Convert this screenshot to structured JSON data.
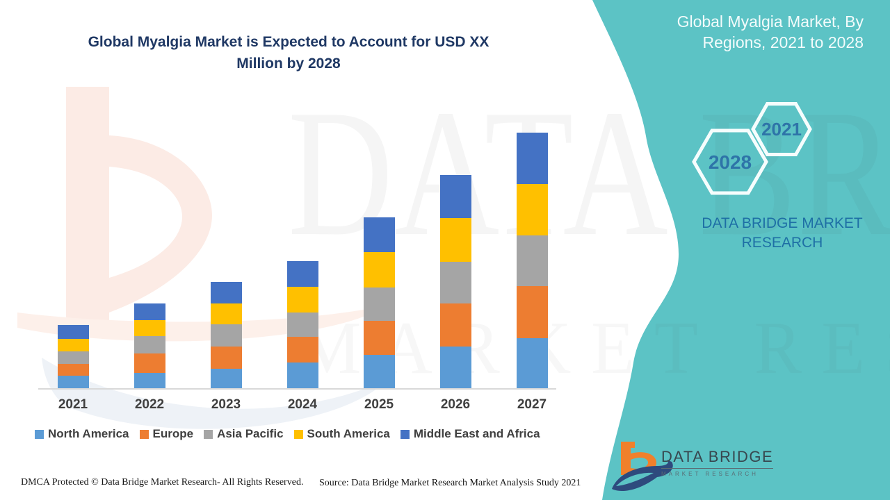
{
  "main_chart": {
    "title_lines": [
      "Global Myalgia Market is Expected to Account for USD XX",
      "Million by 2028"
    ],
    "title_color": "#1f3864"
  },
  "chart_data": {
    "type": "bar",
    "stacked": true,
    "title": "Global Myalgia Market is Expected to Account for USD XX Million by 2028",
    "categories": [
      "2021",
      "2022",
      "2023",
      "2024",
      "2025",
      "2026",
      "2027"
    ],
    "series": [
      {
        "name": "North America",
        "color": "#5B9BD5",
        "values": [
          18,
          22,
          28,
          37,
          48,
          60,
          72
        ]
      },
      {
        "name": "Europe",
        "color": "#ED7D31",
        "values": [
          17,
          28,
          32,
          37,
          49,
          62,
          75
        ]
      },
      {
        "name": "Asia Pacific",
        "color": "#A5A5A5",
        "values": [
          18,
          25,
          32,
          35,
          48,
          60,
          73
        ]
      },
      {
        "name": "South America",
        "color": "#FFC000",
        "values": [
          18,
          23,
          30,
          37,
          51,
          63,
          74
        ]
      },
      {
        "name": "Middle East and Africa",
        "color": "#4472C4",
        "values": [
          20,
          24,
          31,
          37,
          50,
          62,
          74
        ]
      }
    ],
    "value_note": "No value axis shown in source image; values are relative units estimated from stacked bar segment heights",
    "ylim": [
      0,
      380
    ],
    "grid": false,
    "legend_position": "bottom",
    "axis_line_color": "#d9d9d9"
  },
  "side_panel": {
    "background_color": "#5cc3c5",
    "title_lines": [
      "Global Myalgia Market, By",
      "Regions, 2021 to 2028"
    ],
    "hexagons": [
      {
        "label": "2028"
      },
      {
        "label": "2021"
      }
    ],
    "hexagon_text_color": "#2e74a8",
    "brand_lines": [
      "DATA BRIDGE MARKET",
      "RESEARCH"
    ]
  },
  "logo": {
    "name": "DATA BRIDGE",
    "subtitle": "MARKET RESEARCH"
  },
  "watermark": {
    "text_primary": "DATA BRIDGE",
    "text_secondary": "MARKET RESEARCH"
  },
  "footer": {
    "dmca": "DMCA Protected © Data Bridge Market Research- All Rights Reserved.",
    "source": "Source: Data Bridge Market Research Market Analysis Study 2021"
  }
}
